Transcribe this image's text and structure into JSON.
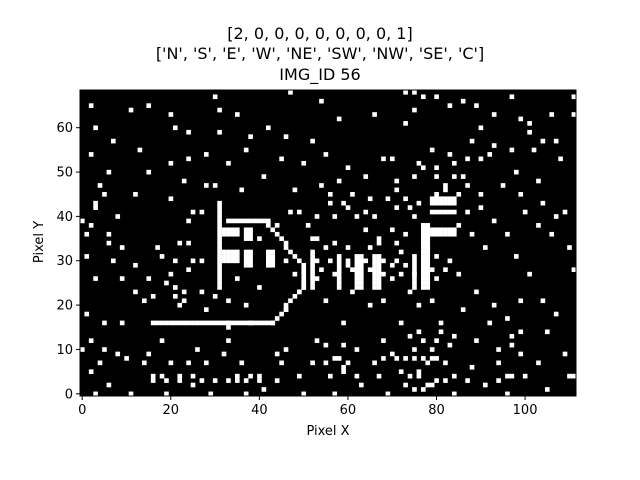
{
  "chart_data": {
    "type": "heatmap",
    "title_lines": [
      "[2, 0, 0, 0, 0, 0, 0, 0, 1]",
      "['N', 'S', 'E', 'W', 'NE', 'SW', 'NW', 'SE', 'C']",
      "IMG_ID 56"
    ],
    "xlabel": "Pixel X",
    "ylabel": "Pixel Y",
    "xlim": [
      -0.5,
      111.5
    ],
    "ylim": [
      -0.5,
      68.5
    ],
    "xticks": [
      0,
      20,
      40,
      60,
      80,
      100
    ],
    "yticks": [
      0,
      10,
      20,
      30,
      40,
      50,
      60
    ],
    "grid": false,
    "colormap": {
      "off": "#000000",
      "on": "#ffffff"
    },
    "segments": [
      [
        16,
        16,
        43,
        16
      ],
      [
        33,
        15,
        33,
        16
      ],
      [
        31,
        24,
        31,
        43
      ],
      [
        77,
        24,
        77,
        38
      ],
      [
        43,
        16,
        49,
        23
      ],
      [
        49,
        23,
        50,
        25
      ],
      [
        42,
        38,
        50,
        29
      ],
      [
        33,
        39,
        42,
        39
      ],
      [
        50,
        24,
        50,
        28
      ],
      [
        52,
        24,
        52,
        32
      ],
      [
        58,
        24,
        58,
        31
      ],
      [
        62,
        24,
        62,
        31
      ],
      [
        63,
        24,
        63,
        31
      ],
      [
        66,
        24,
        66,
        31
      ],
      [
        67,
        24,
        67,
        31
      ],
      [
        75,
        24,
        75,
        31
      ],
      [
        78,
        24,
        78,
        38
      ]
    ],
    "rects": [
      [
        32,
        30,
        35,
        32
      ],
      [
        32,
        36,
        35,
        37
      ],
      [
        37,
        29,
        38,
        32
      ],
      [
        37,
        35,
        38,
        37
      ],
      [
        42,
        29,
        43,
        32
      ],
      [
        79,
        36,
        84,
        37
      ],
      [
        79,
        43,
        84,
        44
      ],
      [
        79,
        41,
        84,
        41
      ]
    ],
    "on_pixels": [
      [
        111,
        67
      ],
      [
        47,
        68
      ],
      [
        97,
        67
      ],
      [
        54,
        66
      ],
      [
        2,
        65
      ],
      [
        11,
        64
      ],
      [
        31,
        64
      ],
      [
        35,
        63
      ],
      [
        58,
        62
      ],
      [
        66,
        63
      ],
      [
        75,
        64
      ],
      [
        93,
        63
      ],
      [
        106,
        63
      ],
      [
        111,
        63
      ],
      [
        3,
        60
      ],
      [
        21,
        60
      ],
      [
        42,
        60
      ],
      [
        73,
        61
      ],
      [
        90,
        60
      ],
      [
        101,
        61
      ],
      [
        24,
        59
      ],
      [
        46,
        58
      ],
      [
        7,
        57
      ],
      [
        52,
        57
      ],
      [
        88,
        57
      ],
      [
        107,
        57
      ],
      [
        13,
        55
      ],
      [
        28,
        54
      ],
      [
        37,
        55
      ],
      [
        55,
        54
      ],
      [
        79,
        55
      ],
      [
        97,
        55
      ],
      [
        2,
        54
      ],
      [
        24,
        53
      ],
      [
        45,
        53
      ],
      [
        83,
        54
      ],
      [
        92,
        54
      ],
      [
        102,
        55
      ],
      [
        68,
        53
      ],
      [
        20,
        52
      ],
      [
        33,
        52
      ],
      [
        60,
        51
      ],
      [
        76,
        52
      ],
      [
        108,
        53
      ],
      [
        6,
        50
      ],
      [
        15,
        50
      ],
      [
        41,
        49
      ],
      [
        86,
        49
      ],
      [
        98,
        50
      ],
      [
        23,
        48
      ],
      [
        30,
        47
      ],
      [
        54,
        47
      ],
      [
        71,
        46
      ],
      [
        95,
        47
      ],
      [
        103,
        48
      ],
      [
        4,
        47
      ],
      [
        28,
        47
      ],
      [
        36,
        46
      ],
      [
        48,
        46
      ],
      [
        82,
        46
      ],
      [
        5,
        45
      ],
      [
        12,
        45
      ],
      [
        61,
        45
      ],
      [
        65,
        44
      ],
      [
        90,
        45
      ],
      [
        99,
        45
      ],
      [
        20,
        44
      ],
      [
        69,
        44
      ],
      [
        3,
        42
      ],
      [
        27,
        41
      ],
      [
        59,
        43
      ],
      [
        90,
        42
      ],
      [
        104,
        43
      ],
      [
        8,
        40
      ],
      [
        25,
        41
      ],
      [
        47,
        41
      ],
      [
        64,
        41
      ],
      [
        87,
        41
      ],
      [
        100,
        41
      ],
      [
        109,
        41
      ],
      [
        57,
        40
      ],
      [
        75,
        40
      ],
      [
        93,
        39
      ],
      [
        107,
        40
      ],
      [
        2,
        38
      ],
      [
        24,
        39
      ],
      [
        44,
        38
      ],
      [
        70,
        37
      ],
      [
        85,
        38
      ],
      [
        103,
        38
      ],
      [
        96,
        36
      ],
      [
        6,
        36
      ],
      [
        9,
        33
      ],
      [
        22,
        34
      ],
      [
        40,
        35
      ],
      [
        67,
        35
      ],
      [
        88,
        36
      ],
      [
        106,
        36
      ],
      [
        17,
        33
      ],
      [
        55,
        33
      ],
      [
        72,
        32
      ],
      [
        91,
        33
      ],
      [
        110,
        33
      ],
      [
        1,
        31
      ],
      [
        18,
        31
      ],
      [
        27,
        30
      ],
      [
        46,
        30
      ],
      [
        60,
        29
      ],
      [
        83,
        30
      ],
      [
        98,
        31
      ],
      [
        12,
        29
      ],
      [
        24,
        28
      ],
      [
        48,
        27
      ],
      [
        85,
        27
      ],
      [
        101,
        27
      ],
      [
        3,
        26
      ],
      [
        15,
        26
      ],
      [
        35,
        26
      ],
      [
        53,
        26
      ],
      [
        70,
        26
      ],
      [
        80,
        26
      ],
      [
        111,
        28
      ],
      [
        23,
        23
      ],
      [
        40,
        24
      ],
      [
        61,
        23
      ],
      [
        74,
        23
      ],
      [
        89,
        23
      ],
      [
        16,
        22
      ],
      [
        21,
        22
      ],
      [
        33,
        21
      ],
      [
        55,
        21
      ],
      [
        68,
        21
      ],
      [
        79,
        21
      ],
      [
        99,
        21
      ],
      [
        104,
        21
      ],
      [
        22,
        20
      ],
      [
        37,
        20
      ],
      [
        65,
        20
      ],
      [
        76,
        20
      ],
      [
        93,
        20
      ],
      [
        1,
        18
      ],
      [
        28,
        19
      ],
      [
        46,
        19
      ],
      [
        86,
        19
      ],
      [
        107,
        18
      ],
      [
        5,
        16
      ],
      [
        9,
        16
      ],
      [
        38,
        16
      ],
      [
        59,
        16
      ],
      [
        72,
        16
      ],
      [
        92,
        16
      ],
      [
        105,
        14
      ],
      [
        81,
        14
      ],
      [
        76,
        14
      ],
      [
        2,
        12
      ],
      [
        18,
        12
      ],
      [
        33,
        12
      ],
      [
        53,
        12
      ],
      [
        68,
        12
      ],
      [
        89,
        12
      ],
      [
        97,
        11
      ],
      [
        0,
        10
      ],
      [
        5,
        10
      ],
      [
        26,
        10
      ],
      [
        46,
        10
      ],
      [
        62,
        10
      ],
      [
        75,
        10
      ],
      [
        79,
        10
      ],
      [
        8,
        9
      ],
      [
        10,
        8
      ],
      [
        15,
        9
      ],
      [
        32,
        9
      ],
      [
        44,
        9
      ],
      [
        57,
        8
      ],
      [
        70,
        9
      ],
      [
        99,
        9
      ],
      [
        109,
        9
      ],
      [
        4,
        7
      ],
      [
        14,
        7
      ],
      [
        20,
        7
      ],
      [
        24,
        7
      ],
      [
        28,
        7
      ],
      [
        36,
        7
      ],
      [
        45,
        7
      ],
      [
        52,
        7
      ],
      [
        60,
        7
      ],
      [
        66,
        7
      ],
      [
        82,
        7
      ],
      [
        88,
        6
      ],
      [
        94,
        7
      ],
      [
        103,
        7
      ],
      [
        2,
        5
      ],
      [
        18,
        4
      ],
      [
        38,
        4
      ],
      [
        67,
        4
      ],
      [
        100,
        4
      ],
      [
        110,
        4
      ],
      [
        111,
        4
      ],
      [
        6,
        2
      ],
      [
        25,
        2
      ],
      [
        41,
        1
      ],
      [
        63,
        2
      ],
      [
        91,
        2
      ],
      [
        105,
        1
      ],
      [
        3,
        0
      ],
      [
        11,
        0
      ],
      [
        19,
        0
      ],
      [
        29,
        0
      ],
      [
        37,
        0
      ],
      [
        50,
        0
      ],
      [
        57,
        0
      ],
      [
        69,
        0
      ],
      [
        84,
        0
      ],
      [
        96,
        0
      ],
      [
        16,
        3
      ],
      [
        16,
        4
      ],
      [
        19,
        3
      ],
      [
        22,
        3
      ],
      [
        22,
        4
      ],
      [
        25,
        4
      ],
      [
        27,
        3
      ],
      [
        30,
        3
      ],
      [
        33,
        3
      ],
      [
        35,
        3
      ],
      [
        35,
        4
      ],
      [
        37,
        3
      ],
      [
        40,
        3
      ],
      [
        40,
        4
      ],
      [
        44,
        3
      ],
      [
        49,
        4
      ],
      [
        56,
        4
      ],
      [
        59,
        5
      ],
      [
        59,
        6
      ],
      [
        62,
        4
      ],
      [
        72,
        5
      ],
      [
        74,
        4
      ],
      [
        76,
        4
      ],
      [
        76,
        5
      ],
      [
        80,
        3
      ],
      [
        82,
        3
      ],
      [
        84,
        4
      ],
      [
        87,
        3
      ],
      [
        94,
        3
      ],
      [
        96,
        4
      ],
      [
        97,
        4
      ],
      [
        71,
        8
      ],
      [
        73,
        8
      ],
      [
        75,
        8
      ],
      [
        77,
        8
      ],
      [
        78,
        7
      ],
      [
        79,
        8
      ],
      [
        80,
        8
      ],
      [
        73,
        2
      ],
      [
        75,
        1
      ],
      [
        77,
        1
      ],
      [
        78,
        2
      ],
      [
        79,
        2
      ],
      [
        68,
        8
      ],
      [
        58,
        8
      ],
      [
        55,
        7
      ],
      [
        59,
        11
      ],
      [
        55,
        11
      ],
      [
        74,
        13
      ],
      [
        77,
        12
      ],
      [
        80,
        12
      ],
      [
        83,
        11
      ],
      [
        84,
        13
      ],
      [
        81,
        16
      ],
      [
        94,
        10
      ],
      [
        97,
        13
      ],
      [
        99,
        14
      ],
      [
        96,
        17
      ],
      [
        74,
        42
      ],
      [
        76,
        43
      ],
      [
        80,
        45
      ],
      [
        82,
        47
      ],
      [
        85,
        45
      ],
      [
        87,
        47
      ],
      [
        84,
        49
      ],
      [
        80,
        49
      ],
      [
        75,
        49
      ],
      [
        71,
        48
      ],
      [
        66,
        40
      ],
      [
        64,
        37
      ],
      [
        51,
        38
      ],
      [
        53,
        40
      ],
      [
        49,
        41
      ],
      [
        56,
        45
      ],
      [
        50,
        52
      ],
      [
        38,
        58
      ],
      [
        31,
        59
      ],
      [
        20,
        63
      ],
      [
        15,
        65
      ],
      [
        30,
        67
      ],
      [
        73,
        68
      ],
      [
        75,
        68
      ],
      [
        77,
        67
      ],
      [
        80,
        67
      ],
      [
        83,
        65
      ],
      [
        86,
        66
      ],
      [
        89,
        65
      ],
      [
        99,
        62
      ],
      [
        101,
        59
      ],
      [
        104,
        57
      ],
      [
        93,
        56
      ],
      [
        90,
        53
      ],
      [
        87,
        53
      ],
      [
        84,
        52
      ],
      [
        80,
        51
      ],
      [
        77,
        51
      ],
      [
        70,
        53
      ],
      [
        64,
        49
      ],
      [
        58,
        48
      ],
      [
        56,
        43
      ],
      [
        60,
        42
      ],
      [
        62,
        40
      ],
      [
        71,
        42
      ],
      [
        73,
        44
      ],
      [
        80,
        37
      ],
      [
        73,
        36
      ],
      [
        71,
        34
      ],
      [
        67,
        34
      ],
      [
        65,
        33
      ],
      [
        60,
        33
      ],
      [
        57,
        34
      ],
      [
        56,
        30
      ],
      [
        60,
        30
      ],
      [
        64,
        30
      ],
      [
        68,
        30
      ],
      [
        71,
        30
      ],
      [
        73,
        29
      ],
      [
        78,
        33
      ],
      [
        80,
        31
      ],
      [
        82,
        28
      ],
      [
        79,
        28
      ],
      [
        75,
        27
      ],
      [
        72,
        27
      ],
      [
        70,
        29
      ],
      [
        68,
        27
      ],
      [
        65,
        28
      ],
      [
        61,
        28
      ],
      [
        57,
        27
      ],
      [
        54,
        28
      ],
      [
        53,
        30
      ],
      [
        53,
        35
      ],
      [
        52,
        35
      ],
      [
        25,
        30
      ],
      [
        24,
        34
      ],
      [
        21,
        30
      ],
      [
        20,
        27
      ],
      [
        19,
        25
      ],
      [
        21,
        24
      ],
      [
        23,
        21
      ],
      [
        27,
        23
      ],
      [
        30,
        22
      ],
      [
        14,
        21
      ],
      [
        12,
        23
      ],
      [
        9,
        26
      ],
      [
        7,
        30
      ],
      [
        6,
        34
      ],
      [
        1,
        36
      ],
      [
        0,
        39
      ],
      [
        3,
        43
      ]
    ]
  }
}
